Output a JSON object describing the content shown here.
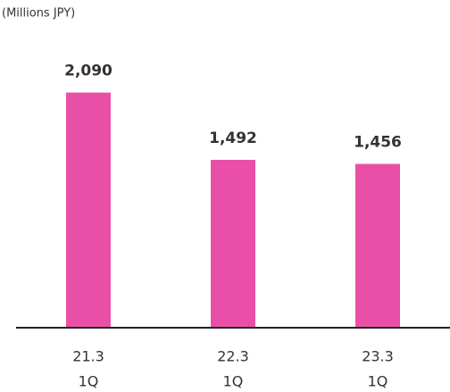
{
  "chart_data": {
    "type": "bar",
    "y_label": "(Millions JPY)",
    "categories": [
      [
        "21.3",
        "1Q"
      ],
      [
        "22.3",
        "1Q"
      ],
      [
        "23.3",
        "1Q"
      ]
    ],
    "values": [
      2090,
      1492,
      1456
    ],
    "value_labels": [
      "2,090",
      "1,492",
      "1,456"
    ],
    "color": "#ea4fa7",
    "ylim": [
      0,
      2500
    ],
    "grid": false
  }
}
